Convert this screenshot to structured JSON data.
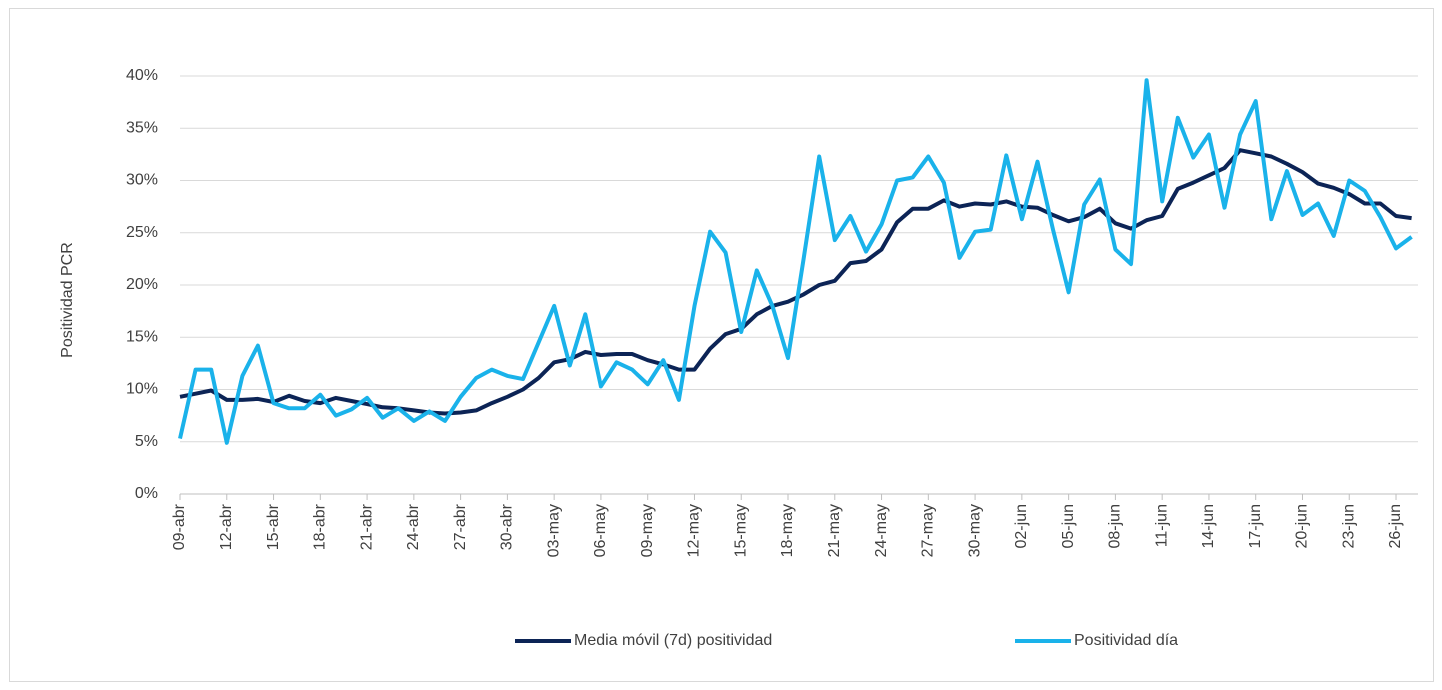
{
  "chart_data": {
    "type": "line",
    "y_label": "Positividad PCR",
    "categories": [
      "09-abr",
      null,
      null,
      "12-abr",
      null,
      null,
      "15-abr",
      null,
      null,
      "18-abr",
      null,
      null,
      "21-abr",
      null,
      null,
      "24-abr",
      null,
      null,
      "27-abr",
      null,
      null,
      "30-abr",
      null,
      null,
      "03-may",
      null,
      null,
      "06-may",
      null,
      null,
      "09-may",
      null,
      null,
      "12-may",
      null,
      null,
      "15-may",
      null,
      null,
      "18-may",
      null,
      null,
      "21-may",
      null,
      null,
      "24-may",
      null,
      null,
      "27-may",
      null,
      null,
      "30-may",
      null,
      null,
      "02-jun",
      null,
      null,
      "05-jun",
      null,
      null,
      "08-jun",
      null,
      null,
      "11-jun",
      null,
      null,
      "14-jun",
      null,
      null,
      "17-jun",
      null,
      null,
      "20-jun",
      null,
      null,
      "23-jun",
      null,
      null,
      "26-jun",
      null
    ],
    "series": [
      {
        "name": "Media móvil (7d) positividad",
        "color": "#0c2456",
        "values": [
          9.3,
          9.6,
          9.9,
          9.0,
          9.0,
          9.1,
          8.8,
          9.4,
          8.9,
          8.7,
          9.2,
          8.9,
          8.6,
          8.3,
          8.2,
          8.0,
          7.8,
          7.7,
          7.8,
          8.0,
          8.7,
          9.3,
          10.0,
          11.1,
          12.6,
          12.9,
          13.6,
          13.3,
          13.4,
          13.4,
          12.8,
          12.4,
          11.9,
          11.9,
          13.9,
          15.3,
          15.8,
          17.2,
          18.0,
          18.4,
          19.1,
          20.0,
          20.4,
          22.1,
          22.3,
          23.4,
          26.0,
          27.3,
          27.3,
          28.1,
          27.5,
          27.8,
          27.7,
          28.0,
          27.5,
          27.4,
          26.7,
          26.1,
          26.5,
          27.3,
          25.9,
          25.4,
          26.2,
          26.6,
          29.2,
          29.8,
          30.5,
          31.2,
          32.9,
          32.6,
          32.3,
          31.6,
          30.8,
          29.7,
          29.3,
          28.7,
          27.8,
          27.8,
          26.6,
          26.4
        ]
      },
      {
        "name": "Positividad día",
        "color": "#1ab2ea",
        "values": [
          5.3,
          11.9,
          11.9,
          4.9,
          11.3,
          14.2,
          8.7,
          8.2,
          8.2,
          9.5,
          7.5,
          8.1,
          9.2,
          7.3,
          8.2,
          7.0,
          7.9,
          7.0,
          9.3,
          11.1,
          11.9,
          11.3,
          11.0,
          14.5,
          18.0,
          12.3,
          17.2,
          10.3,
          12.6,
          11.9,
          10.5,
          12.8,
          9.0,
          18.0,
          25.1,
          23.1,
          15.5,
          21.4,
          18.0,
          13.0,
          22.5,
          32.3,
          24.3,
          26.6,
          23.2,
          25.8,
          30.0,
          30.3,
          32.3,
          29.8,
          22.6,
          25.1,
          25.3,
          32.4,
          26.3,
          31.8,
          25.3,
          19.3,
          27.7,
          30.1,
          23.4,
          22.0,
          39.6,
          28.0,
          36.0,
          32.2,
          34.4,
          27.4,
          34.4,
          37.6,
          26.3,
          30.9,
          26.7,
          27.8,
          24.7,
          30.0,
          29.0,
          26.5,
          23.5,
          24.6
        ]
      }
    ],
    "ylim": [
      0,
      40
    ],
    "yticks": [
      {
        "value": 0,
        "label": "0%"
      },
      {
        "value": 5,
        "label": "5%"
      },
      {
        "value": 10,
        "label": "10%"
      },
      {
        "value": 15,
        "label": "15%"
      },
      {
        "value": 20,
        "label": "20%"
      },
      {
        "value": 25,
        "label": "25%"
      },
      {
        "value": 30,
        "label": "30%"
      },
      {
        "value": 35,
        "label": "35%"
      },
      {
        "value": 40,
        "label": "40%"
      }
    ],
    "grid": true,
    "legend": "bottom"
  }
}
